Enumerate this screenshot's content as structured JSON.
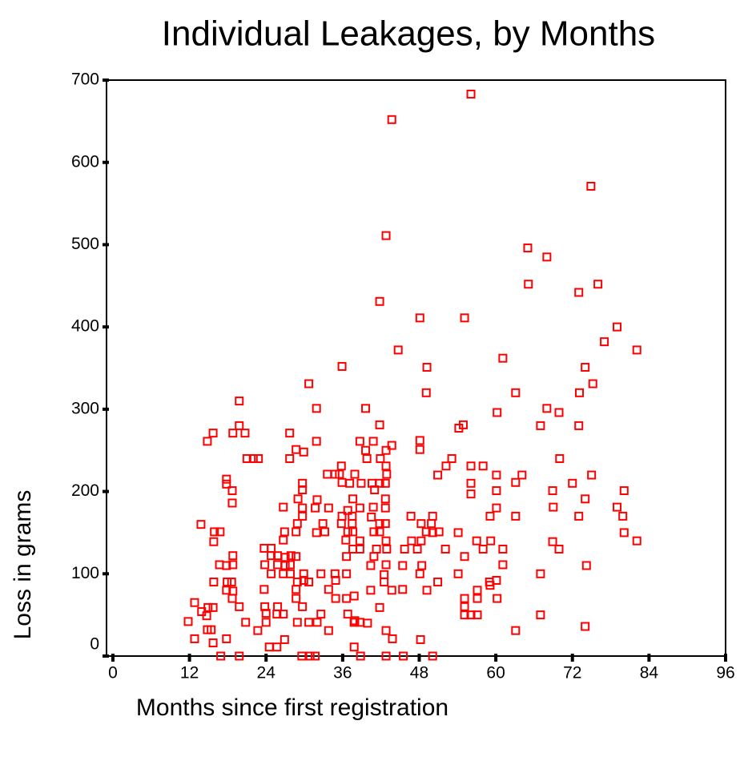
{
  "chart_data": {
    "type": "scatter",
    "title": "Individual Leakages, by Months",
    "x_label": "Months since first registration",
    "y_label": "Loss in grams",
    "color": "#ff0000",
    "xlim": [
      -1,
      96
    ],
    "xticks": [
      0,
      12,
      24,
      36,
      48,
      60,
      72,
      84,
      96
    ],
    "ylim": [
      0,
      700
    ],
    "yticks": [
      0,
      100,
      200,
      300,
      400,
      500,
      600,
      700
    ],
    "x": [
      11.8,
      12.8,
      12.8,
      13.8,
      13.9,
      14.7,
      14.8,
      14.8,
      14.9,
      15.4,
      15.7,
      15.7,
      15.8,
      15.8,
      15.7,
      15.9,
      16.7,
      16.8,
      16.9,
      17.8,
      17.8,
      17.8,
      17.9,
      17.8,
      17.8,
      18.7,
      18.8,
      18.7,
      18.8,
      18.8,
      18.6,
      18.7,
      18.8,
      19.8,
      19.8,
      19.8,
      19.8,
      20.7,
      20.8,
      21.0,
      22.0,
      22.8,
      22.7,
      23.7,
      23.7,
      23.8,
      23.8,
      24.0,
      24.0,
      24.5,
      24.8,
      24.8,
      24.8,
      25.7,
      25.8,
      25.7,
      25.8,
      25.8,
      26.7,
      26.7,
      26.9,
      26.7,
      27.0,
      26.7,
      26.9,
      27.0,
      27.7,
      27.7,
      27.8,
      27.9,
      27.8,
      28.7,
      28.7,
      28.7,
      28.7,
      28.9,
      28.9,
      29.0,
      28.7,
      28.9,
      29.7,
      29.7,
      29.7,
      29.7,
      29.7,
      29.6,
      29.9,
      29.9,
      29.9,
      30.7,
      30.7,
      30.7,
      30.9,
      31.7,
      31.9,
      31.9,
      31.9,
      31.7,
      32.0,
      32.0,
      32.6,
      32.6,
      32.9,
      33.2,
      33.8,
      33.6,
      33.8,
      33.8,
      34.8,
      34.9,
      34.9,
      34.8,
      35.5,
      35.8,
      35.9,
      35.9,
      35.8,
      35.9,
      36.5,
      36.6,
      36.6,
      36.6,
      36.8,
      36.8,
      36.8,
      37.1,
      37.5,
      37.5,
      37.6,
      37.6,
      37.6,
      37.8,
      37.8,
      37.8,
      37.9,
      37.9,
      38.7,
      38.7,
      38.7,
      38.7,
      38.7,
      38.8,
      38.9,
      39.6,
      39.6,
      39.8,
      39.9,
      40.4,
      40.4,
      40.5,
      40.6,
      40.8,
      40.8,
      40.9,
      40.9,
      41.0,
      41.3,
      41.8,
      41.8,
      41.8,
      41.8,
      41.8,
      41.8,
      41.9,
      42.5,
      42.5,
      42.7,
      42.7,
      42.7,
      42.7,
      42.8,
      42.8,
      42.8,
      42.8,
      42.8,
      42.8,
      42.8,
      42.9,
      42.9,
      43.7,
      43.7,
      43.7,
      43.8,
      44.7,
      45.4,
      45.4,
      45.5,
      45.7,
      46.7,
      46.8,
      47.7,
      48.1,
      48.1,
      48.1,
      48.2,
      48.3,
      48.3,
      48.1,
      48.4,
      49.1,
      49.1,
      49.2,
      49.2,
      49.9,
      50.1,
      50.1,
      50.1,
      50.9,
      50.9,
      51.1,
      52.1,
      52.2,
      53.1,
      54.1,
      54.1,
      54.2,
      54.9,
      55.1,
      55.1,
      55.1,
      55.1,
      55.1,
      56.1,
      56.1,
      56.1,
      56.1,
      56.1,
      57.0,
      57.1,
      57.1,
      57.1,
      58.0,
      58.0,
      59.2,
      59.0,
      59.1,
      59.1,
      60.1,
      60.2,
      60.1,
      60.1,
      60.1,
      60.2,
      61.1,
      61.1,
      61.1,
      63.1,
      63.1,
      63.1,
      63.1,
      64.1,
      65.0,
      65.1,
      67.0,
      67.0,
      67.0,
      68.0,
      68.0,
      68.9,
      68.9,
      69.0,
      69.9,
      69.9,
      70.0,
      72.0,
      73.0,
      73.0,
      73.1,
      73.0,
      74.0,
      74.2,
      74.0,
      74.0,
      74.9,
      75.0,
      75.2,
      76.0,
      77.0,
      79.0,
      79.0,
      79.9,
      80.1,
      80.1,
      82.1,
      82.1
    ],
    "values": [
      42,
      65,
      21,
      160,
      54,
      49,
      261,
      32,
      59,
      32,
      271,
      59,
      139,
      90,
      16,
      151,
      111,
      151,
      0,
      21,
      215,
      209,
      90,
      80,
      110,
      201,
      271,
      186,
      122,
      111,
      90,
      70,
      79,
      310,
      280,
      60,
      0,
      271,
      41,
      240,
      240,
      240,
      31,
      131,
      81,
      111,
      60,
      41,
      52,
      11,
      122,
      100,
      131,
      11,
      60,
      51,
      122,
      111,
      181,
      51,
      151,
      141,
      120,
      100,
      20,
      110,
      271,
      240,
      111,
      122,
      100,
      251,
      121,
      81,
      70,
      41,
      90,
      191,
      151,
      161,
      210,
      202,
      180,
      170,
      60,
      0,
      100,
      92,
      248,
      331,
      90,
      41,
      0,
      0,
      301,
      261,
      150,
      180,
      41,
      190,
      100,
      51,
      161,
      151,
      180,
      221,
      31,
      81,
      221,
      70,
      92,
      100,
      221,
      231,
      352,
      211,
      161,
      170,
      141,
      121,
      100,
      70,
      51,
      151,
      177,
      210,
      170,
      161,
      151,
      191,
      130,
      41,
      11,
      73,
      43,
      221,
      140,
      130,
      180,
      261,
      41,
      0,
      210,
      301,
      250,
      240,
      40,
      110,
      80,
      169,
      210,
      181,
      261,
      121,
      151,
      202,
      130,
      431,
      281,
      210,
      59,
      161,
      151,
      240,
      99,
      90,
      161,
      191,
      180,
      210,
      111,
      140,
      250,
      231,
      511,
      31,
      0,
      221,
      130,
      652,
      256,
      80,
      21,
      372,
      110,
      81,
      0,
      130,
      170,
      140,
      130,
      100,
      262,
      251,
      20,
      161,
      140,
      411,
      110,
      151,
      320,
      351,
      80,
      161,
      150,
      170,
      0,
      90,
      220,
      151,
      130,
      231,
      240,
      150,
      100,
      277,
      281,
      411,
      70,
      121,
      50,
      60,
      683,
      210,
      231,
      50,
      197,
      140,
      50,
      80,
      70,
      130,
      231,
      140,
      90,
      170,
      86,
      92,
      70,
      201,
      180,
      220,
      296,
      362,
      111,
      130,
      170,
      31,
      320,
      211,
      220,
      496,
      452,
      280,
      100,
      50,
      485,
      301,
      201,
      139,
      181,
      130,
      296,
      240,
      210,
      442,
      280,
      320,
      170,
      191,
      110,
      351,
      36,
      571,
      220,
      331,
      452,
      382,
      400,
      181,
      170,
      201,
      150,
      372,
      140
    ]
  }
}
